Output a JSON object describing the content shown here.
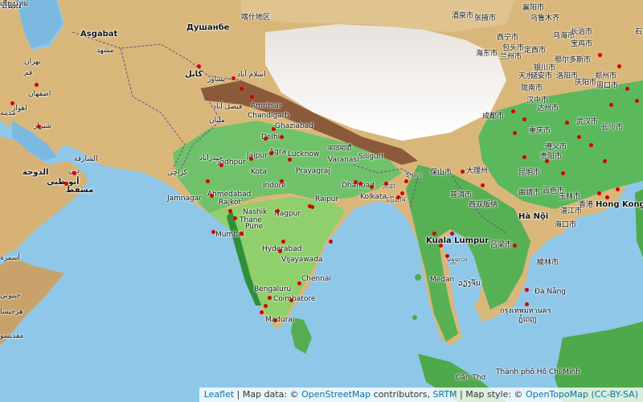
{
  "colors": {
    "water": "#8fc7e8",
    "dot": "#d40000",
    "link": "#0078a8"
  },
  "attribution": {
    "leaflet": "Leaflet",
    "sep1": " | Map data: © ",
    "osm": "OpenStreetMap",
    "mid": " contributors, ",
    "srtm": "SRTM",
    "style": " | Map style: © ",
    "otm": "OpenTopoMap",
    "cc": "(CC-BY-SA)"
  },
  "labels": [
    {
      "t": "Bakı",
      "bold": true
    },
    {
      "t": "Душанбе",
      "bold": true
    },
    {
      "t": "Asgabat",
      "bold": true
    },
    {
      "t": "喀什地区"
    },
    {
      "t": "مشهد"
    },
    {
      "t": "تهران"
    },
    {
      "t": "قم"
    },
    {
      "t": "اصفهان"
    },
    {
      "t": "اهواز"
    },
    {
      "t": "شیراز"
    },
    {
      "t": "کابل",
      "bold": true
    },
    {
      "t": "پشاور"
    },
    {
      "t": "اسلام آباد"
    },
    {
      "t": "فیصل آباد"
    },
    {
      "t": "ملتان"
    },
    {
      "t": "Amritsar"
    },
    {
      "t": "Chandigarh"
    },
    {
      "t": "Ghaziabad"
    },
    {
      "t": "Delhi"
    },
    {
      "t": "Agra"
    },
    {
      "t": "Lucknow"
    },
    {
      "t": "Jaipur"
    },
    {
      "t": "Jodhpur"
    },
    {
      "t": "حيدرآباد"
    },
    {
      "t": "كراچی"
    },
    {
      "t": "Kota"
    },
    {
      "t": "Indore"
    },
    {
      "t": "Prayagraj"
    },
    {
      "t": "Varanasi"
    },
    {
      "t": "Siliguri"
    },
    {
      "t": "काठमाडौं"
    },
    {
      "t": "Ahmedabad"
    },
    {
      "t": "Jamnagar"
    },
    {
      "t": "Rajkot"
    },
    {
      "t": "Nashik"
    },
    {
      "t": "Thane"
    },
    {
      "t": "Pune"
    },
    {
      "t": "Mumbai"
    },
    {
      "t": "Nagpur"
    },
    {
      "t": "Raipur"
    },
    {
      "t": "Dhanbad"
    },
    {
      "t": "Kolkata"
    },
    {
      "t": "ঢাকা"
    },
    {
      "t": "চট্টগ্রাম"
    },
    {
      "t": "ইম্ফল"
    },
    {
      "t": "Hyderabad"
    },
    {
      "t": "Vijayawada"
    },
    {
      "t": "Chennai"
    },
    {
      "t": "Bengaluru"
    },
    {
      "t": "Coimbatore"
    },
    {
      "t": "Madurai"
    },
    {
      "t": "الدوحة",
      "bold": true
    },
    {
      "t": "أبو ظبي",
      "bold": true
    },
    {
      "t": "مسقط",
      "bold": true
    },
    {
      "t": "دبي"
    },
    {
      "t": "الشارقة"
    },
    {
      "t": "أسمرة"
    },
    {
      "t": "جيبوتي"
    },
    {
      "t": "هرجيسا"
    },
    {
      "t": "مقديشو"
    },
    {
      "t": "مدينة"
    },
    {
      "t": "酒泉市"
    },
    {
      "t": "张掖市"
    },
    {
      "t": "西宁市"
    },
    {
      "t": "兰州市"
    },
    {
      "t": "海东市"
    },
    {
      "t": "定西市"
    },
    {
      "t": "天水市"
    },
    {
      "t": "陇南市"
    },
    {
      "t": "汉中市"
    },
    {
      "t": "成都市"
    },
    {
      "t": "达州市"
    },
    {
      "t": "重庆市"
    },
    {
      "t": "遵义市"
    },
    {
      "t": "贵阳市"
    },
    {
      "t": "昆明市"
    },
    {
      "t": "曲靖市"
    },
    {
      "t": "大理州"
    },
    {
      "t": "保山市"
    },
    {
      "t": "百色市"
    },
    {
      "t": "玉林市"
    },
    {
      "t": "普洱市"
    },
    {
      "t": "西双版纳"
    },
    {
      "t": "Hà Nội",
      "bold": true
    },
    {
      "t": "湛江市"
    },
    {
      "t": "香港"
    },
    {
      "t": "Hong Kong",
      "bold": true
    },
    {
      "t": "海口市"
    },
    {
      "t": "武汉市"
    },
    {
      "t": "长沙市"
    },
    {
      "t": "郑州市"
    },
    {
      "t": "周口市"
    },
    {
      "t": "洛阳市"
    },
    {
      "t": "石家庄市"
    },
    {
      "t": "襄阳市"
    },
    {
      "t": "乌鲁木齐"
    },
    {
      "t": "乌海市"
    },
    {
      "t": "包头市"
    },
    {
      "t": "鄂尔多斯市"
    },
    {
      "t": "银川市"
    },
    {
      "t": "延安市"
    },
    {
      "t": "庆阳市"
    },
    {
      "t": "宝鸡市"
    },
    {
      "t": "长治市"
    },
    {
      "t": "吕梁市"
    },
    {
      "t": "榆林市"
    },
    {
      "t": "ວຽງຈັນ"
    },
    {
      "t": "Đà Nẵng"
    },
    {
      "t": "กรุงเทพมหานคร"
    },
    {
      "t": "ភ្នំពេញ"
    },
    {
      "t": "Thành phố Hồ Chí Minh"
    },
    {
      "t": "Cần Thơ"
    },
    {
      "t": "Kuala Lumpur",
      "bold": true
    },
    {
      "t": "Medan"
    },
    {
      "t": "မန္တလေး"
    },
    {
      "t": "ရန်ကုန်"
    },
    {
      "t": "เชียงใหม่"
    }
  ]
}
